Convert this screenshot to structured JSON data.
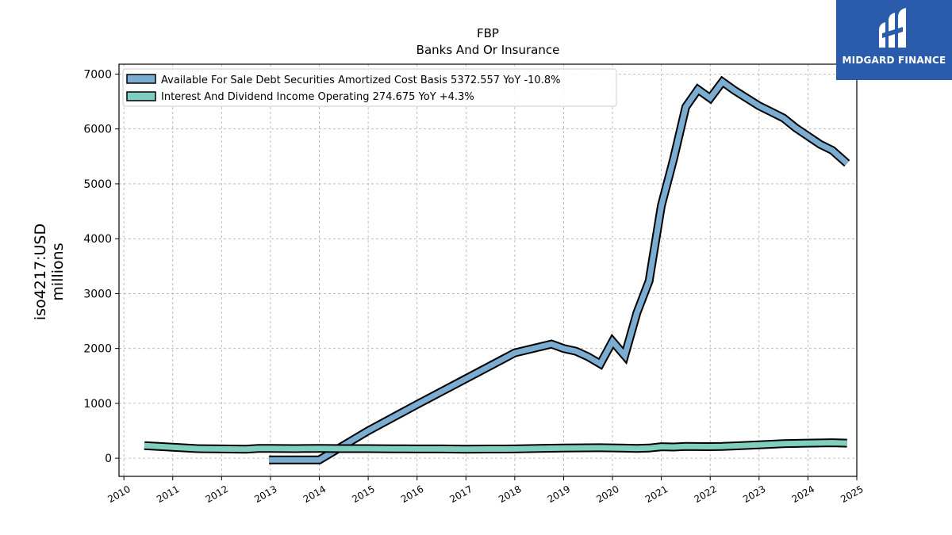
{
  "chart_data": {
    "type": "line",
    "title": "FBP",
    "subtitle": "Banks And Or Insurance",
    "ylabel_line1": "iso4217:USD",
    "ylabel_line2": "millions",
    "xlim": [
      2009.9,
      2025.0
    ],
    "ylim": [
      -330,
      7180
    ],
    "x_ticks": [
      2010,
      2011,
      2012,
      2013,
      2014,
      2015,
      2016,
      2017,
      2018,
      2019,
      2020,
      2021,
      2022,
      2023,
      2024,
      2025
    ],
    "y_ticks": [
      0,
      1000,
      2000,
      3000,
      4000,
      5000,
      6000,
      7000
    ],
    "grid": true,
    "legend_position": "top-left",
    "series": [
      {
        "name": "Available For Sale Debt Securities Amortized Cost Basis  5372.557 YoY -10.8%",
        "color": "#7aadd1",
        "points": [
          [
            2012.97,
            -30
          ],
          [
            2014.0,
            -30
          ],
          [
            2015.0,
            500
          ],
          [
            2016.0,
            980
          ],
          [
            2017.0,
            1450
          ],
          [
            2018.0,
            1920
          ],
          [
            2018.75,
            2080
          ],
          [
            2019.0,
            2000
          ],
          [
            2019.25,
            1950
          ],
          [
            2019.5,
            1850
          ],
          [
            2019.75,
            1720
          ],
          [
            2020.0,
            2130
          ],
          [
            2020.25,
            1870
          ],
          [
            2020.5,
            2650
          ],
          [
            2020.75,
            3230
          ],
          [
            2021.0,
            4600
          ],
          [
            2021.25,
            5450
          ],
          [
            2021.5,
            6400
          ],
          [
            2021.75,
            6720
          ],
          [
            2022.0,
            6560
          ],
          [
            2022.25,
            6860
          ],
          [
            2022.5,
            6700
          ],
          [
            2022.75,
            6560
          ],
          [
            2023.0,
            6420
          ],
          [
            2023.25,
            6310
          ],
          [
            2023.5,
            6200
          ],
          [
            2023.75,
            6020
          ],
          [
            2024.0,
            5870
          ],
          [
            2024.25,
            5720
          ],
          [
            2024.5,
            5610
          ],
          [
            2024.8,
            5372.557
          ]
        ]
      },
      {
        "name": "Interest And Dividend Income Operating  274.675 YoY +4.3%",
        "color": "#7ecfc0",
        "points": [
          [
            2010.42,
            230
          ],
          [
            2011.0,
            200
          ],
          [
            2011.5,
            175
          ],
          [
            2012.0,
            170
          ],
          [
            2012.5,
            165
          ],
          [
            2012.75,
            180
          ],
          [
            2013.0,
            180
          ],
          [
            2013.5,
            175
          ],
          [
            2014.0,
            180
          ],
          [
            2014.5,
            175
          ],
          [
            2015.0,
            175
          ],
          [
            2015.5,
            172
          ],
          [
            2016.0,
            170
          ],
          [
            2016.5,
            170
          ],
          [
            2017.0,
            165
          ],
          [
            2017.5,
            168
          ],
          [
            2018.0,
            170
          ],
          [
            2018.5,
            178
          ],
          [
            2019.0,
            185
          ],
          [
            2019.5,
            190
          ],
          [
            2019.75,
            192
          ],
          [
            2020.0,
            188
          ],
          [
            2020.25,
            184
          ],
          [
            2020.5,
            178
          ],
          [
            2020.75,
            185
          ],
          [
            2021.0,
            210
          ],
          [
            2021.25,
            205
          ],
          [
            2021.5,
            215
          ],
          [
            2022.0,
            212
          ],
          [
            2022.25,
            215
          ],
          [
            2022.5,
            225
          ],
          [
            2023.0,
            245
          ],
          [
            2023.5,
            265
          ],
          [
            2024.0,
            275
          ],
          [
            2024.5,
            283
          ],
          [
            2024.8,
            274.675
          ]
        ]
      }
    ]
  },
  "logo": {
    "text": "MIDGARD FINANCE",
    "background": "#2b5bab",
    "icon": "midgard-logo-icon"
  },
  "colors": {
    "grid": "#b0b0b0",
    "outline": "#000000"
  }
}
